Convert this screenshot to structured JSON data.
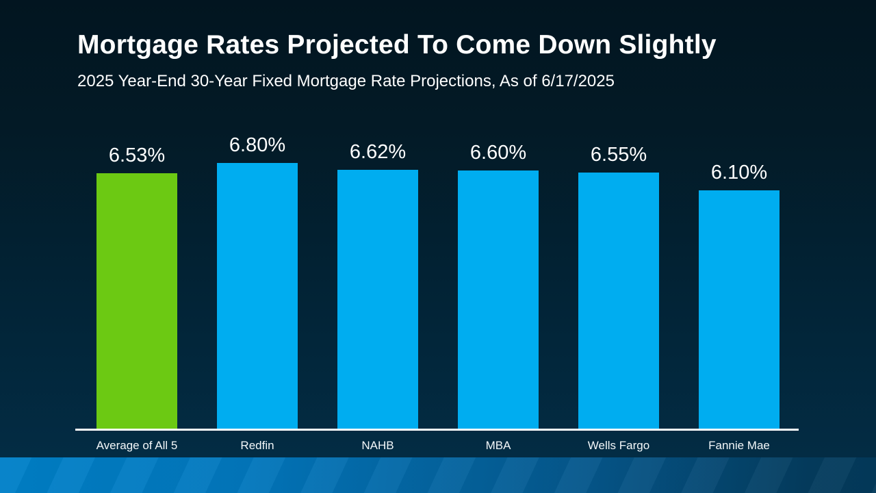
{
  "header": {
    "title": "Mortgage Rates Projected To Come Down Slightly",
    "subtitle": "2025 Year-End 30-Year Fixed Mortgage Rate Projections, As of 6/17/2025"
  },
  "chart_data": {
    "type": "bar",
    "title": "Mortgage Rates Projected To Come Down Slightly",
    "subtitle": "2025 Year-End 30-Year Fixed Mortgage Rate Projections, As of 6/17/2025",
    "categories": [
      "Average of All 5",
      "Redfin",
      "NAHB",
      "MBA",
      "Wells Fargo",
      "Fannie Mae"
    ],
    "values": [
      6.53,
      6.8,
      6.62,
      6.6,
      6.55,
      6.1
    ],
    "value_labels": [
      "6.53%",
      "6.80%",
      "6.62%",
      "6.60%",
      "6.55%",
      "6.10%"
    ],
    "bar_colors": [
      "#6cc913",
      "#00adf0",
      "#00adf0",
      "#00adf0",
      "#00adf0",
      "#00adf0"
    ],
    "highlight_color": "#6cc913",
    "series_color": "#00adf0",
    "xlabel": "",
    "ylabel": "",
    "ylim": [
      0,
      6.8
    ],
    "grid": false,
    "legend": false,
    "value_label_format": "percent",
    "axis_line_color": "#ffffff"
  },
  "colors": {
    "background_top": "#021520",
    "background_bottom": "#032c44",
    "text": "#ffffff",
    "axis_line": "#ffffff",
    "footer_gradient_left": "#0080c8",
    "footer_gradient_right": "#033a5b"
  }
}
